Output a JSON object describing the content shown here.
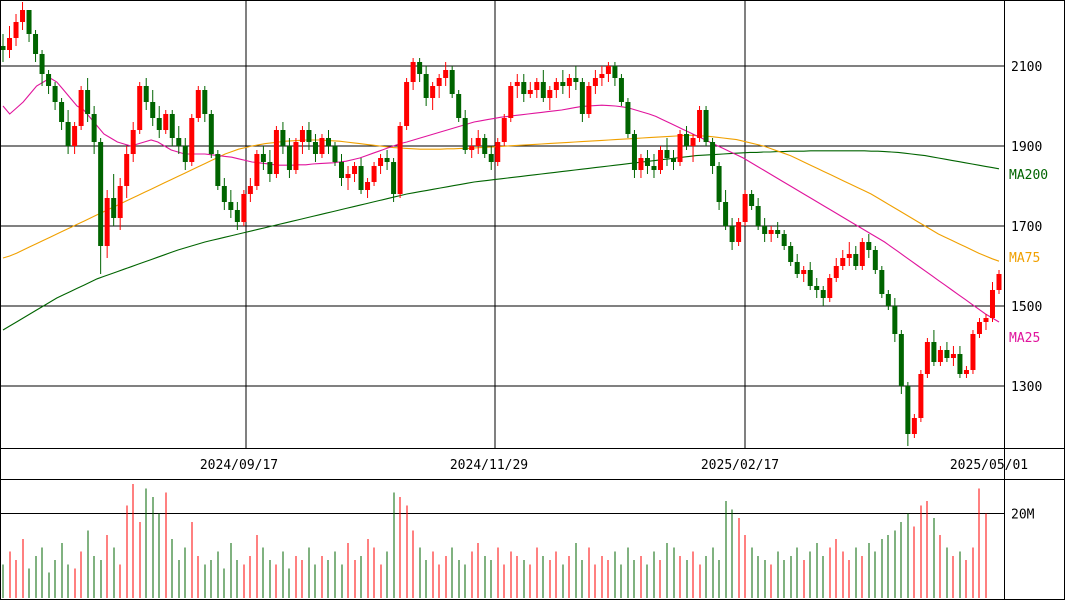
{
  "chart_data": {
    "type": "candlestick",
    "y_ticks": [
      "1300",
      "1500",
      "1700",
      "1900",
      "2100"
    ],
    "y_range": [
      1150,
      2260
    ],
    "x_ticks": [
      "2024/09/17",
      "2024/11/29",
      "2025/02/17",
      "2025/05/01"
    ],
    "moving_average_labels": [
      "MA200",
      "MA75",
      "MA25"
    ],
    "volume_tick": "20M",
    "colors": {
      "up": "#ff0000",
      "down": "#006400",
      "ma25": "#e0149c",
      "ma75": "#f0a000",
      "ma200": "#006400",
      "grid": "#000000"
    },
    "candles": [
      [
        2150,
        2180,
        2110,
        2140
      ],
      [
        2140,
        2200,
        2120,
        2170
      ],
      [
        2170,
        2230,
        2150,
        2210
      ],
      [
        2210,
        2260,
        2190,
        2240
      ],
      [
        2240,
        2240,
        2160,
        2180
      ],
      [
        2180,
        2190,
        2110,
        2130
      ],
      [
        2130,
        2140,
        2050,
        2080
      ],
      [
        2080,
        2090,
        2030,
        2050
      ],
      [
        2050,
        2060,
        1990,
        2010
      ],
      [
        2010,
        2020,
        1940,
        1960
      ],
      [
        1960,
        1990,
        1880,
        1900
      ],
      [
        1900,
        1960,
        1880,
        1950
      ],
      [
        1950,
        2050,
        1940,
        2040
      ],
      [
        2040,
        2070,
        1960,
        1980
      ],
      [
        1980,
        2000,
        1880,
        1910
      ],
      [
        1910,
        1920,
        1580,
        1650
      ],
      [
        1650,
        1790,
        1620,
        1770
      ],
      [
        1770,
        1830,
        1700,
        1720
      ],
      [
        1720,
        1820,
        1690,
        1800
      ],
      [
        1800,
        1900,
        1770,
        1880
      ],
      [
        1880,
        1960,
        1860,
        1940
      ],
      [
        1940,
        2060,
        1930,
        2050
      ],
      [
        2050,
        2070,
        1990,
        2010
      ],
      [
        2010,
        2040,
        1950,
        1970
      ],
      [
        1970,
        2000,
        1920,
        1940
      ],
      [
        1940,
        1990,
        1930,
        1980
      ],
      [
        1980,
        1990,
        1900,
        1920
      ],
      [
        1920,
        1950,
        1880,
        1900
      ],
      [
        1900,
        1920,
        1840,
        1860
      ],
      [
        1860,
        1980,
        1850,
        1970
      ],
      [
        1970,
        2050,
        1960,
        2040
      ],
      [
        2040,
        2050,
        1960,
        1980
      ],
      [
        1980,
        1990,
        1870,
        1880
      ],
      [
        1880,
        1890,
        1790,
        1800
      ],
      [
        1800,
        1820,
        1740,
        1760
      ],
      [
        1760,
        1790,
        1720,
        1740
      ],
      [
        1740,
        1760,
        1690,
        1710
      ],
      [
        1710,
        1790,
        1700,
        1780
      ],
      [
        1780,
        1820,
        1760,
        1800
      ],
      [
        1800,
        1890,
        1790,
        1880
      ],
      [
        1880,
        1900,
        1840,
        1860
      ],
      [
        1860,
        1890,
        1810,
        1830
      ],
      [
        1830,
        1950,
        1820,
        1940
      ],
      [
        1940,
        1960,
        1880,
        1900
      ],
      [
        1900,
        1920,
        1820,
        1840
      ],
      [
        1840,
        1920,
        1830,
        1910
      ],
      [
        1910,
        1950,
        1880,
        1940
      ],
      [
        1940,
        1960,
        1890,
        1910
      ],
      [
        1910,
        1930,
        1860,
        1880
      ],
      [
        1880,
        1930,
        1870,
        1920
      ],
      [
        1920,
        1940,
        1880,
        1900
      ],
      [
        1900,
        1910,
        1850,
        1860
      ],
      [
        1860,
        1880,
        1800,
        1820
      ],
      [
        1820,
        1850,
        1790,
        1830
      ],
      [
        1830,
        1860,
        1810,
        1850
      ],
      [
        1850,
        1870,
        1780,
        1790
      ],
      [
        1790,
        1820,
        1770,
        1810
      ],
      [
        1810,
        1860,
        1800,
        1850
      ],
      [
        1850,
        1880,
        1830,
        1870
      ],
      [
        1870,
        1890,
        1840,
        1860
      ],
      [
        1860,
        1870,
        1760,
        1780
      ],
      [
        1780,
        1960,
        1770,
        1950
      ],
      [
        1950,
        2070,
        1940,
        2060
      ],
      [
        2060,
        2120,
        2040,
        2110
      ],
      [
        2110,
        2120,
        2060,
        2080
      ],
      [
        2080,
        2100,
        2000,
        2020
      ],
      [
        2020,
        2060,
        1990,
        2050
      ],
      [
        2050,
        2080,
        2020,
        2070
      ],
      [
        2070,
        2110,
        2050,
        2090
      ],
      [
        2090,
        2100,
        2020,
        2030
      ],
      [
        2030,
        2040,
        1960,
        1970
      ],
      [
        1970,
        1990,
        1880,
        1890
      ],
      [
        1890,
        1920,
        1870,
        1900
      ],
      [
        1900,
        1940,
        1880,
        1920
      ],
      [
        1920,
        1930,
        1870,
        1880
      ],
      [
        1880,
        1900,
        1840,
        1860
      ],
      [
        1860,
        1920,
        1850,
        1910
      ],
      [
        1910,
        1980,
        1900,
        1970
      ],
      [
        1970,
        2060,
        1960,
        2050
      ],
      [
        2050,
        2080,
        2020,
        2060
      ],
      [
        2060,
        2080,
        2010,
        2030
      ],
      [
        2030,
        2060,
        2020,
        2040
      ],
      [
        2040,
        2070,
        2020,
        2060
      ],
      [
        2060,
        2090,
        2010,
        2020
      ],
      [
        2020,
        2050,
        1990,
        2040
      ],
      [
        2040,
        2070,
        2020,
        2060
      ],
      [
        2060,
        2090,
        2030,
        2050
      ],
      [
        2050,
        2080,
        2020,
        2070
      ],
      [
        2070,
        2100,
        2040,
        2060
      ],
      [
        2060,
        2070,
        1960,
        1980
      ],
      [
        1980,
        2060,
        1970,
        2050
      ],
      [
        2050,
        2090,
        2030,
        2070
      ],
      [
        2070,
        2100,
        2050,
        2080
      ],
      [
        2080,
        2110,
        2060,
        2100
      ],
      [
        2100,
        2110,
        2050,
        2070
      ],
      [
        2070,
        2080,
        2000,
        2010
      ],
      [
        2010,
        2020,
        1920,
        1930
      ],
      [
        1930,
        1940,
        1820,
        1840
      ],
      [
        1840,
        1880,
        1820,
        1870
      ],
      [
        1870,
        1890,
        1830,
        1850
      ],
      [
        1850,
        1880,
        1820,
        1840
      ],
      [
        1840,
        1900,
        1830,
        1890
      ],
      [
        1890,
        1920,
        1850,
        1870
      ],
      [
        1870,
        1890,
        1840,
        1860
      ],
      [
        1860,
        1940,
        1850,
        1930
      ],
      [
        1930,
        1950,
        1890,
        1900
      ],
      [
        1900,
        1930,
        1860,
        1920
      ],
      [
        1920,
        2000,
        1910,
        1990
      ],
      [
        1990,
        2000,
        1900,
        1910
      ],
      [
        1910,
        1920,
        1830,
        1850
      ],
      [
        1850,
        1860,
        1740,
        1760
      ],
      [
        1760,
        1790,
        1690,
        1700
      ],
      [
        1700,
        1720,
        1640,
        1660
      ],
      [
        1660,
        1720,
        1650,
        1710
      ],
      [
        1710,
        1790,
        1700,
        1780
      ],
      [
        1780,
        1790,
        1740,
        1750
      ],
      [
        1750,
        1770,
        1690,
        1700
      ],
      [
        1700,
        1720,
        1660,
        1680
      ],
      [
        1680,
        1700,
        1660,
        1690
      ],
      [
        1690,
        1710,
        1670,
        1680
      ],
      [
        1680,
        1690,
        1640,
        1650
      ],
      [
        1650,
        1660,
        1600,
        1610
      ],
      [
        1610,
        1630,
        1570,
        1580
      ],
      [
        1580,
        1600,
        1560,
        1590
      ],
      [
        1590,
        1610,
        1540,
        1550
      ],
      [
        1550,
        1570,
        1520,
        1540
      ],
      [
        1540,
        1550,
        1500,
        1520
      ],
      [
        1520,
        1580,
        1510,
        1570
      ],
      [
        1570,
        1620,
        1560,
        1600
      ],
      [
        1600,
        1640,
        1590,
        1620
      ],
      [
        1620,
        1660,
        1600,
        1630
      ],
      [
        1630,
        1650,
        1590,
        1600
      ],
      [
        1600,
        1670,
        1590,
        1660
      ],
      [
        1660,
        1680,
        1620,
        1640
      ],
      [
        1640,
        1650,
        1580,
        1590
      ],
      [
        1590,
        1600,
        1520,
        1530
      ],
      [
        1530,
        1540,
        1490,
        1500
      ],
      [
        1500,
        1520,
        1410,
        1430
      ],
      [
        1430,
        1440,
        1280,
        1300
      ],
      [
        1300,
        1310,
        1150,
        1180
      ],
      [
        1180,
        1230,
        1170,
        1220
      ],
      [
        1220,
        1340,
        1210,
        1330
      ],
      [
        1330,
        1420,
        1320,
        1410
      ],
      [
        1410,
        1440,
        1350,
        1360
      ],
      [
        1360,
        1400,
        1350,
        1390
      ],
      [
        1390,
        1410,
        1360,
        1370
      ],
      [
        1370,
        1400,
        1350,
        1380
      ],
      [
        1380,
        1400,
        1320,
        1330
      ],
      [
        1330,
        1350,
        1320,
        1340
      ],
      [
        1340,
        1440,
        1330,
        1430
      ],
      [
        1430,
        1470,
        1420,
        1460
      ],
      [
        1460,
        1480,
        1440,
        1470
      ],
      [
        1470,
        1560,
        1460,
        1540
      ],
      [
        1540,
        1590,
        1530,
        1580
      ]
    ],
    "ma25": [
      2000,
      1980,
      1995,
      2010,
      2030,
      2050,
      2060,
      2070,
      2060,
      2040,
      2020,
      2000,
      1990,
      1970,
      1950,
      1930,
      1920,
      1910,
      1905,
      1900,
      1905,
      1910,
      1915,
      1910,
      1900,
      1890,
      1885,
      1880,
      1880,
      1880,
      1880,
      1878,
      1876,
      1874,
      1872,
      1868,
      1864,
      1860,
      1858,
      1856,
      1854,
      1852,
      1852,
      1852,
      1853,
      1853,
      1855,
      1856,
      1857,
      1858,
      1860,
      1862,
      1866,
      1870,
      1876,
      1882,
      1888,
      1894,
      1900,
      1906,
      1910,
      1915,
      1920,
      1925,
      1930,
      1935,
      1940,
      1945,
      1950,
      1955,
      1960,
      1963,
      1966,
      1969,
      1972,
      1974,
      1976,
      1978,
      1980,
      1982,
      1984,
      1986,
      1988,
      1990,
      1993,
      1996,
      1999,
      2000,
      2001,
      2002,
      2001,
      2000,
      1998,
      1995,
      1990,
      1985,
      1980,
      1974,
      1966,
      1958,
      1950,
      1942,
      1934,
      1926,
      1918,
      1910,
      1902,
      1894,
      1886,
      1878,
      1870,
      1860,
      1850,
      1840,
      1830,
      1820,
      1810,
      1800,
      1790,
      1780,
      1770,
      1760,
      1750,
      1740,
      1730,
      1720,
      1710,
      1700,
      1690,
      1680,
      1670,
      1660,
      1648,
      1636,
      1624,
      1612,
      1600,
      1588,
      1576,
      1564,
      1552,
      1540,
      1528,
      1516,
      1504,
      1492,
      1480,
      1470,
      1460
    ],
    "ma75": [
      1620,
      1625,
      1632,
      1640,
      1648,
      1656,
      1664,
      1672,
      1680,
      1688,
      1696,
      1704,
      1712,
      1720,
      1728,
      1736,
      1744,
      1752,
      1760,
      1768,
      1776,
      1784,
      1792,
      1800,
      1808,
      1816,
      1824,
      1832,
      1840,
      1848,
      1856,
      1864,
      1872,
      1880,
      1886,
      1892,
      1896,
      1900,
      1903,
      1906,
      1908,
      1910,
      1912,
      1913,
      1914,
      1915,
      1915,
      1915,
      1914,
      1913,
      1912,
      1910,
      1908,
      1906,
      1904,
      1902,
      1900,
      1898,
      1896,
      1895,
      1894,
      1893,
      1892,
      1892,
      1892,
      1892,
      1893,
      1893,
      1894,
      1894,
      1895,
      1896,
      1897,
      1898,
      1899,
      1900,
      1901,
      1902,
      1903,
      1904,
      1905,
      1906,
      1907,
      1908,
      1909,
      1910,
      1911,
      1912,
      1913,
      1914,
      1915,
      1916,
      1917,
      1918,
      1919,
      1920,
      1921,
      1922,
      1923,
      1924,
      1925,
      1926,
      1927,
      1926,
      1925,
      1924,
      1922,
      1920,
      1918,
      1916,
      1912,
      1908,
      1904,
      1900,
      1894,
      1888,
      1882,
      1876,
      1868,
      1860,
      1852,
      1844,
      1836,
      1828,
      1820,
      1812,
      1804,
      1796,
      1788,
      1780,
      1770,
      1760,
      1750,
      1740,
      1730,
      1720,
      1710,
      1700,
      1690,
      1680,
      1672,
      1664,
      1656,
      1648,
      1640,
      1632,
      1625,
      1618,
      1612
    ],
    "ma200": [
      1440,
      1450,
      1460,
      1470,
      1480,
      1490,
      1500,
      1510,
      1520,
      1528,
      1536,
      1544,
      1552,
      1560,
      1568,
      1574,
      1580,
      1586,
      1592,
      1598,
      1604,
      1610,
      1616,
      1622,
      1628,
      1634,
      1640,
      1645,
      1650,
      1655,
      1660,
      1664,
      1668,
      1672,
      1676,
      1680,
      1684,
      1688,
      1692,
      1696,
      1700,
      1704,
      1708,
      1712,
      1716,
      1720,
      1724,
      1728,
      1732,
      1736,
      1740,
      1744,
      1748,
      1752,
      1756,
      1760,
      1764,
      1768,
      1772,
      1776,
      1780,
      1783,
      1786,
      1789,
      1792,
      1795,
      1798,
      1801,
      1804,
      1807,
      1810,
      1812,
      1814,
      1816,
      1818,
      1820,
      1822,
      1824,
      1826,
      1828,
      1830,
      1832,
      1834,
      1836,
      1838,
      1840,
      1842,
      1844,
      1846,
      1848,
      1850,
      1852,
      1854,
      1856,
      1858,
      1860,
      1862,
      1864,
      1866,
      1868,
      1870,
      1872,
      1874,
      1876,
      1877,
      1878,
      1879,
      1880,
      1881,
      1882,
      1883,
      1884,
      1884,
      1885,
      1885,
      1886,
      1886,
      1887,
      1887,
      1887,
      1888,
      1888,
      1888,
      1888,
      1888,
      1888,
      1888,
      1888,
      1888,
      1887,
      1887,
      1886,
      1885,
      1884,
      1882,
      1880,
      1878,
      1876,
      1873,
      1870,
      1867,
      1864,
      1861,
      1858,
      1855,
      1852,
      1849,
      1846,
      1843
    ],
    "volume_range": [
      0,
      28
    ],
    "volumes": [
      8,
      11,
      9,
      14,
      7,
      10,
      12,
      6,
      9,
      13,
      8,
      7,
      11,
      16,
      10,
      9,
      15,
      12,
      8,
      22,
      27,
      18,
      26,
      24,
      20,
      25,
      14,
      9,
      12,
      18,
      10,
      8,
      9,
      11,
      7,
      13,
      9,
      8,
      10,
      15,
      12,
      9,
      8,
      11,
      7,
      10,
      9,
      12,
      8,
      10,
      9,
      11,
      8,
      13,
      9,
      10,
      14,
      12,
      8,
      11,
      25,
      24,
      22,
      16,
      12,
      9,
      11,
      8,
      10,
      12,
      9,
      8,
      11,
      13,
      10,
      9,
      12,
      8,
      11,
      10,
      9,
      8,
      12,
      10,
      9,
      11,
      8,
      10,
      13,
      9,
      12,
      8,
      10,
      9,
      11,
      8,
      12,
      9,
      10,
      8,
      11,
      9,
      13,
      12,
      10,
      9,
      11,
      8,
      10,
      12,
      9,
      23,
      21,
      19,
      15,
      12,
      10,
      9,
      8,
      11,
      9,
      10,
      12,
      9,
      11,
      13,
      10,
      12,
      14,
      11,
      9,
      12,
      10,
      13,
      11,
      14,
      15,
      16,
      18,
      20,
      17,
      22,
      23,
      19,
      15,
      12,
      10,
      11,
      9,
      12,
      26,
      20
    ]
  }
}
